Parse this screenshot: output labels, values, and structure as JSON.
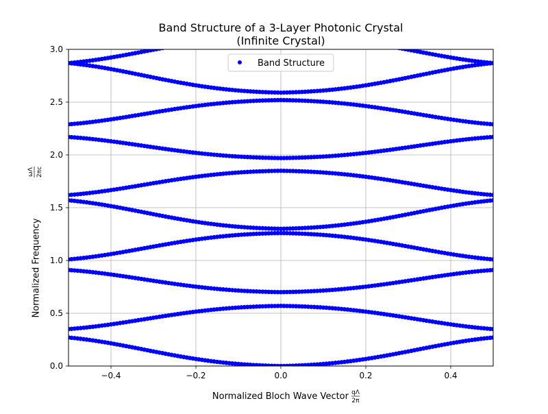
{
  "chart_data": {
    "type": "scatter",
    "title": "Band Structure of a 3-Layer Photonic Crystal",
    "subtitle": "(Infinite Crystal)",
    "xlabel": "Normalized Bloch Wave Vector",
    "xlabel_frac_num": "qΛ",
    "xlabel_frac_den": "2π",
    "ylabel": "Normalized Frequency",
    "ylabel_frac_num": "ωΛ",
    "ylabel_frac_den": "2πc",
    "xlim": [
      -0.5,
      0.5
    ],
    "ylim": [
      0,
      3.0
    ],
    "xticks": [
      -0.4,
      -0.2,
      0.0,
      0.2,
      0.4
    ],
    "xtick_labels": [
      "−0.4",
      "−0.2",
      "0.0",
      "0.2",
      "0.4"
    ],
    "yticks": [
      0.0,
      0.5,
      1.0,
      1.5,
      2.0,
      2.5,
      3.0
    ],
    "ytick_labels": [
      "0.0",
      "0.5",
      "1.0",
      "1.5",
      "2.0",
      "2.5",
      "3.0"
    ],
    "grid": true,
    "legend_position": "top-center",
    "marker_color": "#0000ff",
    "series": [
      {
        "name": "Band Structure",
        "bands": [
          {
            "at_zero": 0.0,
            "at_edge": 0.27
          },
          {
            "at_zero": 0.57,
            "at_edge": 0.35
          },
          {
            "at_zero": 0.7,
            "at_edge": 0.91
          },
          {
            "at_zero": 1.26,
            "at_edge": 1.01
          },
          {
            "at_zero": 1.3,
            "at_edge": 1.57
          },
          {
            "at_zero": 1.85,
            "at_edge": 1.62
          },
          {
            "at_zero": 1.97,
            "at_edge": 2.17
          },
          {
            "at_zero": 2.52,
            "at_edge": 2.29
          },
          {
            "at_zero": 2.59,
            "at_edge": 2.87
          },
          {
            "at_zero": 3.13,
            "at_edge": 2.87
          }
        ]
      }
    ]
  }
}
